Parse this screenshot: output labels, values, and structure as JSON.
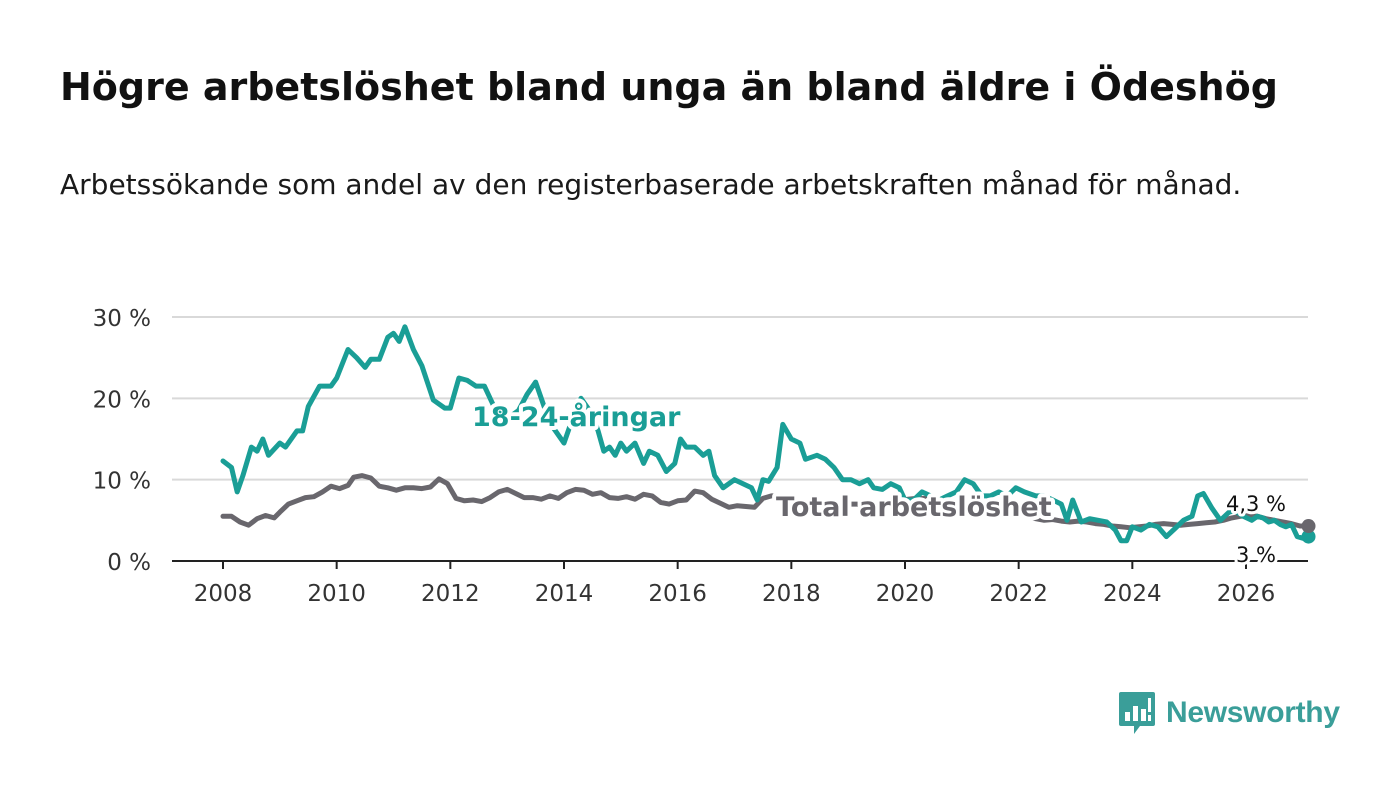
{
  "title": "Högre arbetslöshet bland unga än bland äldre i Ödeshög",
  "subtitle": "Arbetssökande som andel av den registerbaserade arbetskraften månad för månad.",
  "logo": {
    "text": "Newsworthy",
    "icon": "chat-bar-chart-icon",
    "color": "#3a9e99"
  },
  "chart_data": {
    "type": "line",
    "title": "Högre arbetslöshet bland unga än bland äldre i Ödeshög",
    "xlabel": "",
    "ylabel": "",
    "xlim": [
      2007.7,
      2026.6
    ],
    "ylim": [
      0,
      30
    ],
    "grid": true,
    "x_ticks": [
      2008,
      2010,
      2012,
      2014,
      2016,
      2018,
      2020,
      2022,
      2024,
      2026
    ],
    "x_tick_labels": [
      "2008",
      "2010",
      "2012",
      "2014",
      "2016",
      "2018",
      "2020",
      "2022",
      "2024",
      "2026"
    ],
    "y_ticks": [
      0,
      10,
      20,
      30
    ],
    "y_tick_labels": [
      "0 %",
      "10 %",
      "20 %",
      "30 %"
    ],
    "series": [
      {
        "name": "18-24-åringar",
        "color": "#1a9e96",
        "end_label": "3 %",
        "points": [
          [
            2008.0,
            12.3
          ],
          [
            2008.15,
            11.5
          ],
          [
            2008.25,
            8.5
          ],
          [
            2008.35,
            10.5
          ],
          [
            2008.5,
            14.0
          ],
          [
            2008.6,
            13.5
          ],
          [
            2008.7,
            15.0
          ],
          [
            2008.8,
            13.0
          ],
          [
            2009.0,
            14.5
          ],
          [
            2009.1,
            14.0
          ],
          [
            2009.3,
            16.0
          ],
          [
            2009.4,
            16.0
          ],
          [
            2009.5,
            19.0
          ],
          [
            2009.7,
            21.5
          ],
          [
            2009.9,
            21.5
          ],
          [
            2010.0,
            22.5
          ],
          [
            2010.2,
            26.0
          ],
          [
            2010.35,
            25.0
          ],
          [
            2010.5,
            23.8
          ],
          [
            2010.6,
            24.8
          ],
          [
            2010.75,
            24.8
          ],
          [
            2010.9,
            27.5
          ],
          [
            2011.0,
            28.0
          ],
          [
            2011.1,
            27.0
          ],
          [
            2011.2,
            28.8
          ],
          [
            2011.35,
            26.0
          ],
          [
            2011.5,
            24.0
          ],
          [
            2011.7,
            19.8
          ],
          [
            2011.9,
            18.8
          ],
          [
            2012.0,
            18.8
          ],
          [
            2012.15,
            22.5
          ],
          [
            2012.3,
            22.2
          ],
          [
            2012.45,
            21.5
          ],
          [
            2012.6,
            21.5
          ],
          [
            2012.8,
            18.5
          ],
          [
            2013.0,
            17.5
          ],
          [
            2013.2,
            18.5
          ],
          [
            2013.35,
            20.5
          ],
          [
            2013.5,
            22.0
          ],
          [
            2013.65,
            19.0
          ],
          [
            2013.8,
            16.5
          ],
          [
            2014.0,
            14.5
          ],
          [
            2014.15,
            17.5
          ],
          [
            2014.3,
            20.0
          ],
          [
            2014.5,
            18.0
          ],
          [
            2014.6,
            16.0
          ],
          [
            2014.7,
            13.5
          ],
          [
            2014.8,
            14.0
          ],
          [
            2014.9,
            13.0
          ],
          [
            2015.0,
            14.5
          ],
          [
            2015.1,
            13.5
          ],
          [
            2015.25,
            14.5
          ],
          [
            2015.4,
            12.0
          ],
          [
            2015.5,
            13.5
          ],
          [
            2015.65,
            13.0
          ],
          [
            2015.8,
            11.0
          ],
          [
            2015.95,
            12.0
          ],
          [
            2016.05,
            15.0
          ],
          [
            2016.15,
            14.0
          ],
          [
            2016.3,
            14.0
          ],
          [
            2016.45,
            13.0
          ],
          [
            2016.55,
            13.5
          ],
          [
            2016.65,
            10.5
          ],
          [
            2016.8,
            9.0
          ],
          [
            2017.0,
            10.0
          ],
          [
            2017.15,
            9.5
          ],
          [
            2017.3,
            9.0
          ],
          [
            2017.4,
            7.5
          ],
          [
            2017.5,
            10.0
          ],
          [
            2017.6,
            9.8
          ],
          [
            2017.75,
            11.5
          ],
          [
            2017.85,
            16.8
          ],
          [
            2018.0,
            15.0
          ],
          [
            2018.15,
            14.5
          ],
          [
            2018.25,
            12.5
          ],
          [
            2018.45,
            13.0
          ],
          [
            2018.6,
            12.5
          ],
          [
            2018.75,
            11.5
          ],
          [
            2018.9,
            10.0
          ],
          [
            2019.05,
            10.0
          ],
          [
            2019.2,
            9.5
          ],
          [
            2019.35,
            10.0
          ],
          [
            2019.45,
            9.0
          ],
          [
            2019.6,
            8.8
          ],
          [
            2019.75,
            9.5
          ],
          [
            2019.9,
            9.0
          ],
          [
            2020.0,
            7.5
          ],
          [
            2020.15,
            7.5
          ],
          [
            2020.3,
            8.5
          ],
          [
            2020.45,
            8.0
          ],
          [
            2020.6,
            7.5
          ],
          [
            2020.75,
            8.0
          ],
          [
            2020.9,
            8.5
          ],
          [
            2021.05,
            10.0
          ],
          [
            2021.2,
            9.5
          ],
          [
            2021.35,
            8.0
          ],
          [
            2021.5,
            8.0
          ],
          [
            2021.65,
            8.5
          ],
          [
            2021.8,
            8.0
          ],
          [
            2021.95,
            9.0
          ],
          [
            2022.1,
            8.5
          ],
          [
            2022.3,
            8.0
          ],
          [
            2022.45,
            8.0
          ],
          [
            2022.6,
            7.5
          ],
          [
            2022.75,
            7.0
          ],
          [
            2022.85,
            5.0
          ],
          [
            2022.95,
            7.5
          ],
          [
            2023.1,
            4.8
          ],
          [
            2023.25,
            5.2
          ],
          [
            2023.4,
            5.0
          ],
          [
            2023.55,
            4.8
          ],
          [
            2023.7,
            3.8
          ],
          [
            2023.8,
            2.5
          ],
          [
            2023.9,
            2.5
          ],
          [
            2024.0,
            4.2
          ],
          [
            2024.15,
            3.8
          ],
          [
            2024.3,
            4.5
          ],
          [
            2024.45,
            4.2
          ],
          [
            2024.6,
            3.0
          ],
          [
            2024.75,
            4.0
          ],
          [
            2024.9,
            5.0
          ],
          [
            2025.05,
            5.5
          ],
          [
            2025.15,
            8.0
          ],
          [
            2025.25,
            8.3
          ],
          [
            2025.4,
            6.5
          ],
          [
            2025.55,
            5.0
          ],
          [
            2025.7,
            6.0
          ],
          [
            2025.8,
            6.2
          ],
          [
            2025.95,
            5.5
          ],
          [
            2026.1,
            5.0
          ],
          [
            2026.2,
            5.5
          ],
          [
            2026.3,
            5.3
          ],
          [
            2026.4,
            4.8
          ],
          [
            2026.5,
            5.0
          ],
          [
            2026.6,
            4.5
          ],
          [
            2026.7,
            4.2
          ],
          [
            2026.8,
            4.5
          ],
          [
            2026.9,
            3.0
          ],
          [
            2027.0,
            2.8
          ],
          [
            2027.1,
            3.0
          ]
        ]
      },
      {
        "name": "Total arbetslöshet",
        "color": "#69676d",
        "end_label": "4,3 %",
        "points": [
          [
            2008.0,
            5.5
          ],
          [
            2008.15,
            5.5
          ],
          [
            2008.3,
            4.8
          ],
          [
            2008.45,
            4.4
          ],
          [
            2008.6,
            5.2
          ],
          [
            2008.75,
            5.6
          ],
          [
            2008.9,
            5.3
          ],
          [
            2009.0,
            6.0
          ],
          [
            2009.15,
            7.0
          ],
          [
            2009.3,
            7.4
          ],
          [
            2009.45,
            7.8
          ],
          [
            2009.6,
            7.9
          ],
          [
            2009.75,
            8.5
          ],
          [
            2009.9,
            9.2
          ],
          [
            2010.05,
            8.9
          ],
          [
            2010.2,
            9.3
          ],
          [
            2010.3,
            10.3
          ],
          [
            2010.45,
            10.5
          ],
          [
            2010.6,
            10.2
          ],
          [
            2010.75,
            9.2
          ],
          [
            2010.9,
            9.0
          ],
          [
            2011.05,
            8.7
          ],
          [
            2011.2,
            9.0
          ],
          [
            2011.35,
            9.0
          ],
          [
            2011.5,
            8.9
          ],
          [
            2011.65,
            9.1
          ],
          [
            2011.8,
            10.1
          ],
          [
            2011.95,
            9.5
          ],
          [
            2012.1,
            7.7
          ],
          [
            2012.25,
            7.4
          ],
          [
            2012.4,
            7.5
          ],
          [
            2012.55,
            7.3
          ],
          [
            2012.7,
            7.8
          ],
          [
            2012.85,
            8.5
          ],
          [
            2013.0,
            8.8
          ],
          [
            2013.15,
            8.3
          ],
          [
            2013.3,
            7.8
          ],
          [
            2013.45,
            7.8
          ],
          [
            2013.6,
            7.6
          ],
          [
            2013.75,
            8.0
          ],
          [
            2013.9,
            7.7
          ],
          [
            2014.05,
            8.4
          ],
          [
            2014.2,
            8.8
          ],
          [
            2014.35,
            8.7
          ],
          [
            2014.5,
            8.2
          ],
          [
            2014.65,
            8.4
          ],
          [
            2014.8,
            7.8
          ],
          [
            2014.95,
            7.7
          ],
          [
            2015.1,
            7.9
          ],
          [
            2015.25,
            7.6
          ],
          [
            2015.4,
            8.2
          ],
          [
            2015.55,
            8.0
          ],
          [
            2015.7,
            7.2
          ],
          [
            2015.85,
            7.0
          ],
          [
            2016.0,
            7.4
          ],
          [
            2016.15,
            7.5
          ],
          [
            2016.3,
            8.6
          ],
          [
            2016.45,
            8.4
          ],
          [
            2016.6,
            7.6
          ],
          [
            2016.75,
            7.1
          ],
          [
            2016.9,
            6.6
          ],
          [
            2017.05,
            6.8
          ],
          [
            2017.2,
            6.7
          ],
          [
            2017.35,
            6.6
          ],
          [
            2017.5,
            7.7
          ],
          [
            2017.65,
            8.0
          ],
          [
            2017.8,
            8.0
          ],
          [
            2017.95,
            7.6
          ],
          [
            2018.1,
            7.4
          ],
          [
            2018.25,
            6.8
          ],
          [
            2018.4,
            6.7
          ],
          [
            2018.55,
            6.5
          ],
          [
            2018.7,
            6.7
          ],
          [
            2018.85,
            6.9
          ],
          [
            2019.0,
            7.0
          ],
          [
            2019.15,
            7.0
          ],
          [
            2019.3,
            6.8
          ],
          [
            2019.45,
            6.6
          ],
          [
            2019.6,
            6.8
          ],
          [
            2019.75,
            7.3
          ],
          [
            2019.9,
            7.1
          ],
          [
            2020.05,
            7.6
          ],
          [
            2020.2,
            7.7
          ],
          [
            2020.35,
            7.7
          ],
          [
            2020.5,
            7.2
          ],
          [
            2020.65,
            7.0
          ],
          [
            2020.8,
            6.8
          ],
          [
            2020.95,
            6.7
          ],
          [
            2021.1,
            7.0
          ],
          [
            2021.25,
            6.9
          ],
          [
            2021.4,
            6.6
          ],
          [
            2021.55,
            6.4
          ],
          [
            2021.7,
            6.6
          ],
          [
            2021.85,
            6.0
          ],
          [
            2022.0,
            5.8
          ],
          [
            2022.15,
            5.5
          ],
          [
            2022.3,
            5.2
          ],
          [
            2022.45,
            5.0
          ],
          [
            2022.6,
            5.1
          ],
          [
            2022.75,
            4.9
          ],
          [
            2022.9,
            4.8
          ],
          [
            2023.05,
            4.9
          ],
          [
            2023.2,
            4.8
          ],
          [
            2023.35,
            4.6
          ],
          [
            2023.5,
            4.5
          ],
          [
            2023.65,
            4.3
          ],
          [
            2023.8,
            4.2
          ],
          [
            2023.95,
            4.1
          ],
          [
            2024.1,
            4.2
          ],
          [
            2024.25,
            4.3
          ],
          [
            2024.4,
            4.5
          ],
          [
            2024.55,
            4.6
          ],
          [
            2024.7,
            4.5
          ],
          [
            2024.85,
            4.4
          ],
          [
            2025.0,
            4.5
          ],
          [
            2025.15,
            4.6
          ],
          [
            2025.3,
            4.7
          ],
          [
            2025.45,
            4.8
          ],
          [
            2025.6,
            5.0
          ],
          [
            2025.75,
            5.3
          ],
          [
            2025.9,
            5.5
          ],
          [
            2026.05,
            5.6
          ],
          [
            2026.2,
            5.5
          ],
          [
            2026.35,
            5.2
          ],
          [
            2026.5,
            5.0
          ],
          [
            2026.65,
            4.8
          ],
          [
            2026.8,
            4.6
          ],
          [
            2026.95,
            4.3
          ],
          [
            2027.1,
            4.3
          ]
        ]
      }
    ]
  }
}
